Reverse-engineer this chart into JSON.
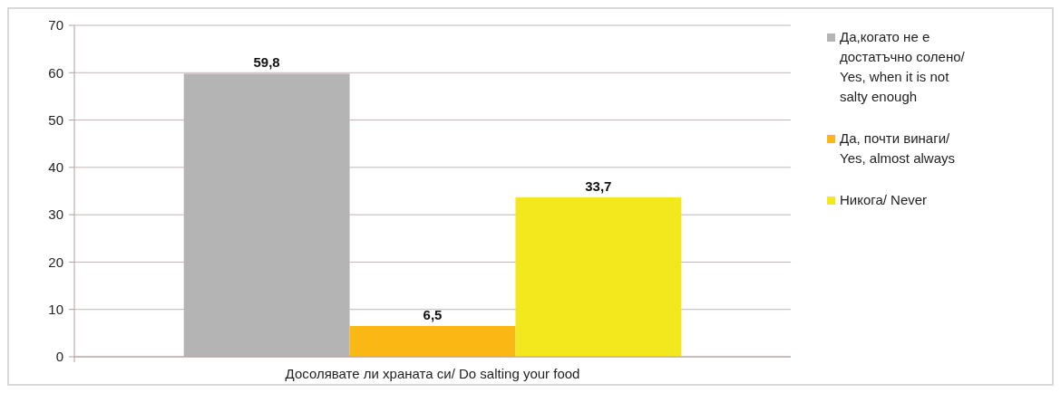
{
  "chart_data": {
    "type": "bar",
    "categories": [
      "Досолявате ли храната си/ Do salting your food"
    ],
    "series": [
      {
        "name": "Да,когато не е достатъчно солено/ Yes, when it is not salty enough",
        "color": "#b5b4b4",
        "values": [
          59.8
        ],
        "value_labels": [
          "59,8"
        ]
      },
      {
        "name": "Да, почти винаги/ Yes, almost always",
        "color": "#fbb714",
        "values": [
          6.5
        ],
        "value_labels": [
          "6,5"
        ]
      },
      {
        "name": "Никога/ Never",
        "color": "#f2e81d",
        "values": [
          33.7
        ],
        "value_labels": [
          "33,7"
        ]
      }
    ],
    "ylim": [
      0,
      70
    ],
    "yticks": [
      0,
      10,
      20,
      30,
      40,
      50,
      60,
      70
    ],
    "grid": "y",
    "legend": "right"
  }
}
